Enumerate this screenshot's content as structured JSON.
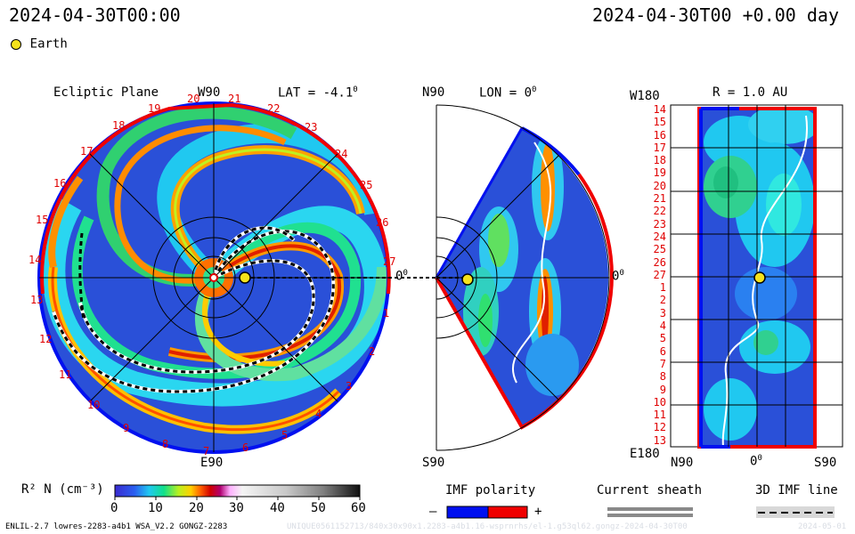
{
  "header": {
    "left_datetime": "2024-04-30T00:00",
    "right_datetime": "2024-04-30T00 +0.00 day"
  },
  "legend_top": {
    "earth_label": "Earth",
    "earth_color": "#f5e21c"
  },
  "panel_ecliptic": {
    "title": "Ecliptic Plane",
    "top_label": "W90",
    "bottom_label": "E90",
    "right_label": "0",
    "lat_label": "LAT = -4.1",
    "degree_mark": "0",
    "tick_numbers": [
      "18",
      "19",
      "20",
      "21",
      "22",
      "23",
      "24",
      "25",
      "26",
      "27",
      "1",
      "2",
      "3",
      "4",
      "5",
      "6",
      "7",
      "8",
      "9",
      "10",
      "11",
      "12",
      "13",
      "14",
      "15",
      "16",
      "17"
    ]
  },
  "panel_meridional": {
    "top_label": "N90",
    "bottom_label": "S90",
    "right_label": "0",
    "lon_label": "LON = 0",
    "degree_mark": "0"
  },
  "panel_synoptic": {
    "title": "R = 1.0 AU",
    "top_left_label": "W180",
    "bottom_left_label": "E180",
    "x_labels": [
      "N90",
      "0",
      "S90"
    ],
    "degree_mark": "0",
    "rotation_labels": [
      "14",
      "15",
      "16",
      "17",
      "18",
      "19",
      "20",
      "21",
      "22",
      "23",
      "24",
      "25",
      "26",
      "27",
      "1",
      "2",
      "3",
      "4",
      "5",
      "6",
      "7",
      "8",
      "9",
      "10",
      "11",
      "12",
      "13"
    ]
  },
  "colorbar": {
    "label": "R² N (cm⁻³)",
    "ticks": [
      "0",
      "10",
      "20",
      "30",
      "40",
      "50",
      "60"
    ]
  },
  "imf_polarity": {
    "label": "IMF polarity",
    "minus": "–",
    "plus": "+",
    "neg_color": "#0010f0",
    "pos_color": "#f00000"
  },
  "current_sheath": {
    "label": "Current sheath"
  },
  "imf_line": {
    "label": "3D IMF line"
  },
  "footer": {
    "model_info": "ENLIL-2.7 lowres-2283-a4b1 WSA_V2.2 GONGZ-2283",
    "watermark": "UNIQUE0561152713/840x30x90x1.2283-a4b1.16-wsprnrhs/el-1.g53ql62.gongz-2024-04-30T00",
    "watermark_date": "2024-05-01"
  }
}
